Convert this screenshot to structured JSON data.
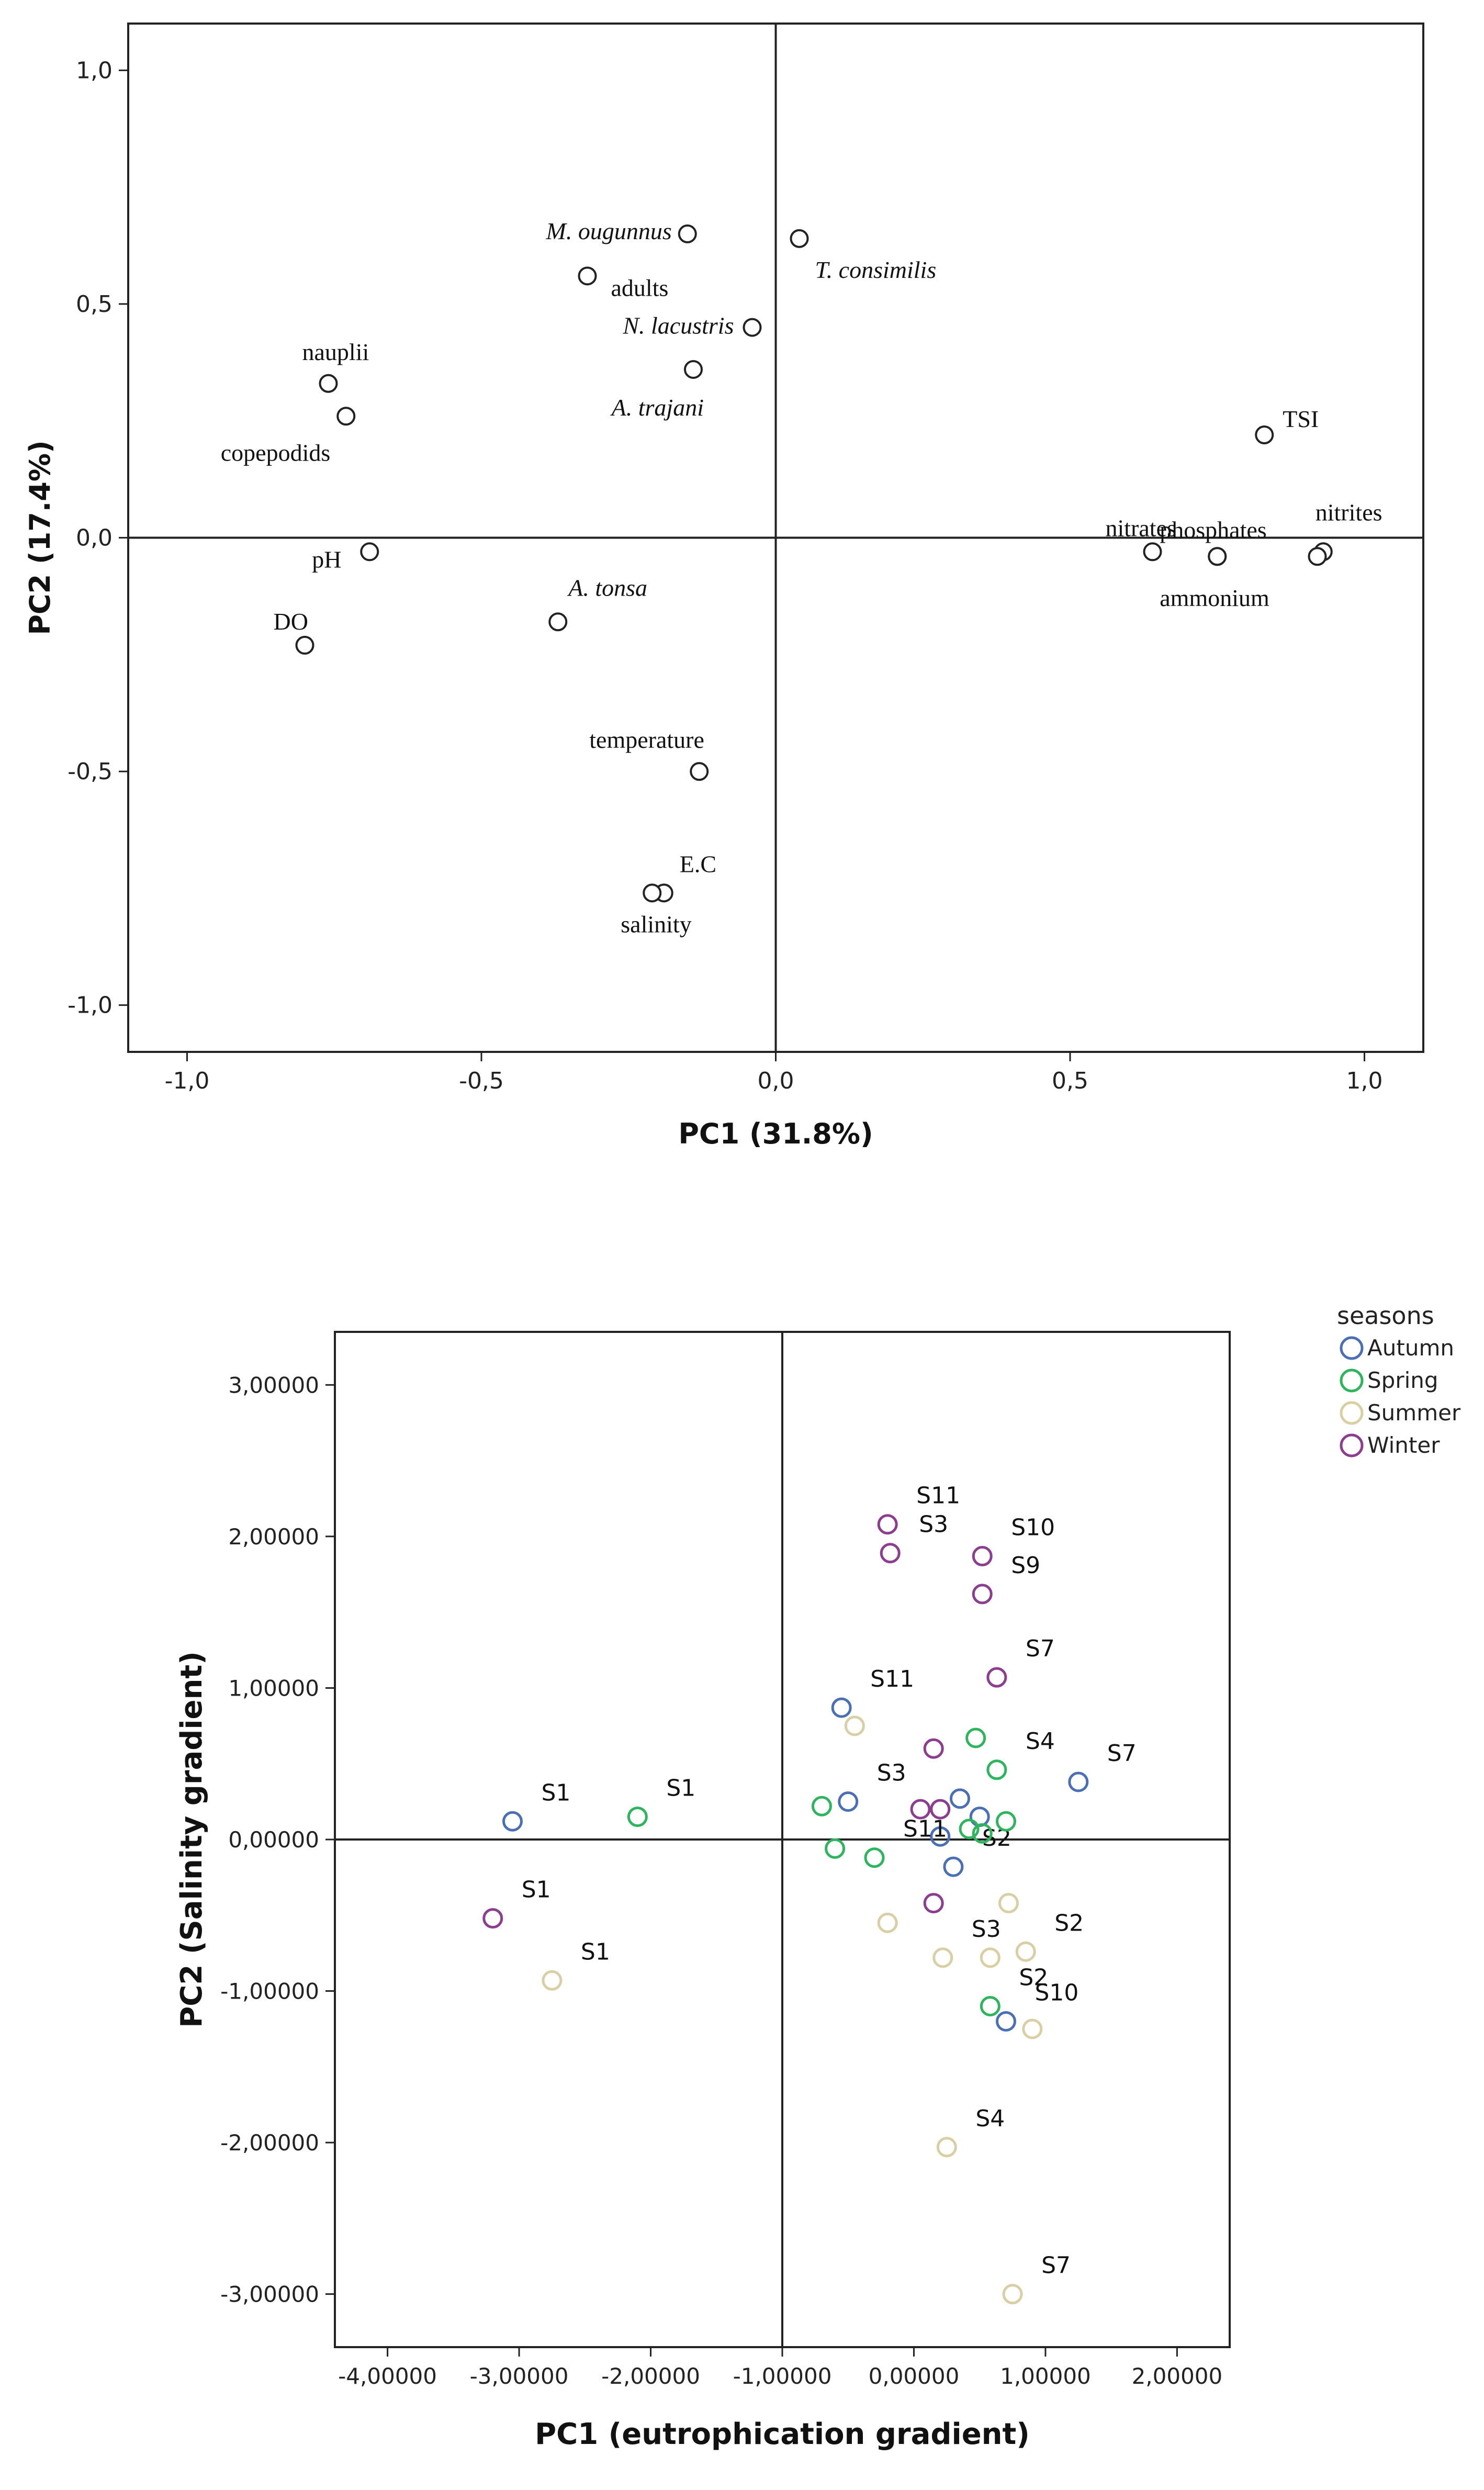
{
  "chart_data": [
    {
      "type": "scatter",
      "title": "",
      "xlabel": "PC1 (31.8%)",
      "ylabel": "PC2 (17.4%)",
      "xlim": [
        -1.1,
        1.1
      ],
      "ylim": [
        -1.1,
        1.1
      ],
      "xticks": [
        -1.0,
        -0.5,
        0.0,
        0.5,
        1.0
      ],
      "xtick_labels": [
        "-1,0",
        "-0,5",
        "0,0",
        "0,5",
        "1,0"
      ],
      "yticks": [
        1.0,
        0.5,
        0.0,
        -0.5,
        -1.0
      ],
      "ytick_labels": [
        "1,0",
        "0,5",
        "0,0",
        "-0,5",
        "-1,0"
      ],
      "grid": false,
      "reference_lines": [
        {
          "axis": "x",
          "value": 0
        },
        {
          "axis": "y",
          "value": 0
        }
      ],
      "points": [
        {
          "label": "M. ougunnus",
          "x": -0.15,
          "y": 0.65,
          "italic": true
        },
        {
          "label": "adults",
          "x": -0.32,
          "y": 0.56,
          "italic": false
        },
        {
          "label": "T. consimilis",
          "x": 0.04,
          "y": 0.64,
          "italic": true
        },
        {
          "label": "N. lacustris",
          "x": -0.04,
          "y": 0.45,
          "italic": true
        },
        {
          "label": "A. trajani",
          "x": -0.14,
          "y": 0.36,
          "italic": true
        },
        {
          "label": "nauplii",
          "x": -0.76,
          "y": 0.33,
          "italic": false
        },
        {
          "label": "copepodids",
          "x": -0.73,
          "y": 0.26,
          "italic": false
        },
        {
          "label": "TSI",
          "x": 0.83,
          "y": 0.22,
          "italic": false
        },
        {
          "label": "nitrates",
          "x": 0.64,
          "y": -0.03,
          "italic": false
        },
        {
          "label": "phosphates",
          "x": 0.75,
          "y": -0.04,
          "italic": false
        },
        {
          "label": "ammonium",
          "x": 0.75,
          "y": -0.04,
          "italic": false
        },
        {
          "label": "nitrites",
          "x": 0.93,
          "y": -0.03,
          "italic": false
        },
        {
          "label": "",
          "x": 0.92,
          "y": -0.04,
          "italic": false
        },
        {
          "label": "pH",
          "x": -0.69,
          "y": -0.03,
          "italic": false
        },
        {
          "label": "DO",
          "x": -0.8,
          "y": -0.23,
          "italic": false
        },
        {
          "label": "A. tonsa",
          "x": -0.37,
          "y": -0.18,
          "italic": true
        },
        {
          "label": "temperature",
          "x": -0.13,
          "y": -0.5,
          "italic": false
        },
        {
          "label": "E.C",
          "x": -0.19,
          "y": -0.76,
          "italic": false
        },
        {
          "label": "salinity",
          "x": -0.21,
          "y": -0.76,
          "italic": false
        }
      ]
    },
    {
      "type": "scatter",
      "title": "",
      "xlabel": "PC1 (eutrophication gradient)",
      "ylabel": "PC2 (Salinity gradient)",
      "xlim": [
        -4.4,
        2.4
      ],
      "ylim": [
        -3.35,
        3.35
      ],
      "xticks": [
        -4,
        -3,
        -2,
        -1,
        0,
        1,
        2
      ],
      "xtick_labels": [
        "-4,00000",
        "-3,00000",
        "-2,00000",
        "-1,00000",
        "0,00000",
        "1,00000",
        "2,00000"
      ],
      "yticks": [
        3,
        2,
        1,
        0,
        -1,
        -2,
        -3
      ],
      "ytick_labels": [
        "3,00000",
        "2,00000",
        "1,00000",
        "0,00000",
        "-1,00000",
        "-2,00000",
        "-3,00000"
      ],
      "grid": false,
      "reference_lines": [
        {
          "axis": "x",
          "value": -1
        },
        {
          "axis": "y",
          "value": 0
        }
      ],
      "legend": {
        "title": "seasons",
        "position": "right",
        "entries": [
          {
            "name": "Autumn",
            "color": "#4a6fb5"
          },
          {
            "name": "Spring",
            "color": "#2db55d"
          },
          {
            "name": "Summer",
            "color": "#d8cfa4"
          },
          {
            "name": "Winter",
            "color": "#8c3d8f"
          }
        ]
      },
      "series": [
        {
          "name": "Autumn",
          "points": [
            {
              "x": -3.05,
              "y": 0.12,
              "label": "S1"
            },
            {
              "x": -0.55,
              "y": 0.87,
              "label": "S11"
            },
            {
              "x": -0.5,
              "y": 0.25,
              "label": "S3"
            },
            {
              "x": 0.35,
              "y": 0.27,
              "label": ""
            },
            {
              "x": 0.5,
              "y": 0.15,
              "label": ""
            },
            {
              "x": 0.2,
              "y": 0.02,
              "label": ""
            },
            {
              "x": 0.3,
              "y": -0.18,
              "label": "S2"
            },
            {
              "x": 1.25,
              "y": 0.38,
              "label": "S7"
            },
            {
              "x": 0.7,
              "y": -1.2,
              "label": "S10"
            }
          ]
        },
        {
          "name": "Spring",
          "points": [
            {
              "x": -2.1,
              "y": 0.15,
              "label": "S1"
            },
            {
              "x": -0.7,
              "y": 0.22,
              "label": ""
            },
            {
              "x": -0.6,
              "y": -0.06,
              "label": ""
            },
            {
              "x": -0.3,
              "y": -0.12,
              "label": "S11"
            },
            {
              "x": 0.47,
              "y": 0.67,
              "label": ""
            },
            {
              "x": 0.63,
              "y": 0.46,
              "label": "S4"
            },
            {
              "x": 0.42,
              "y": 0.07,
              "label": ""
            },
            {
              "x": 0.52,
              "y": 0.04,
              "label": ""
            },
            {
              "x": 0.7,
              "y": 0.12,
              "label": ""
            },
            {
              "x": 0.58,
              "y": -1.1,
              "label": "S2"
            }
          ]
        },
        {
          "name": "Summer",
          "points": [
            {
              "x": -2.75,
              "y": -0.93,
              "label": "S1"
            },
            {
              "x": -0.45,
              "y": 0.75,
              "label": ""
            },
            {
              "x": -0.2,
              "y": -0.55,
              "label": ""
            },
            {
              "x": 0.22,
              "y": -0.78,
              "label": "S3"
            },
            {
              "x": 0.58,
              "y": -0.78,
              "label": ""
            },
            {
              "x": 0.72,
              "y": -0.42,
              "label": ""
            },
            {
              "x": 0.85,
              "y": -0.74,
              "label": "S2"
            },
            {
              "x": 0.9,
              "y": -1.25,
              "label": ""
            },
            {
              "x": 0.25,
              "y": -2.03,
              "label": "S4"
            },
            {
              "x": 0.75,
              "y": -3.0,
              "label": "S7"
            }
          ]
        },
        {
          "name": "Winter",
          "points": [
            {
              "x": -3.2,
              "y": -0.52,
              "label": "S1"
            },
            {
              "x": -0.2,
              "y": 2.08,
              "label": "S11"
            },
            {
              "x": -0.18,
              "y": 1.89,
              "label": "S3"
            },
            {
              "x": 0.52,
              "y": 1.87,
              "label": "S10"
            },
            {
              "x": 0.52,
              "y": 1.62,
              "label": "S9"
            },
            {
              "x": 0.63,
              "y": 1.07,
              "label": "S7"
            },
            {
              "x": 0.15,
              "y": 0.6,
              "label": ""
            },
            {
              "x": 0.05,
              "y": 0.2,
              "label": ""
            },
            {
              "x": 0.2,
              "y": 0.2,
              "label": ""
            },
            {
              "x": 0.15,
              "y": -0.42,
              "label": ""
            }
          ]
        }
      ]
    }
  ]
}
